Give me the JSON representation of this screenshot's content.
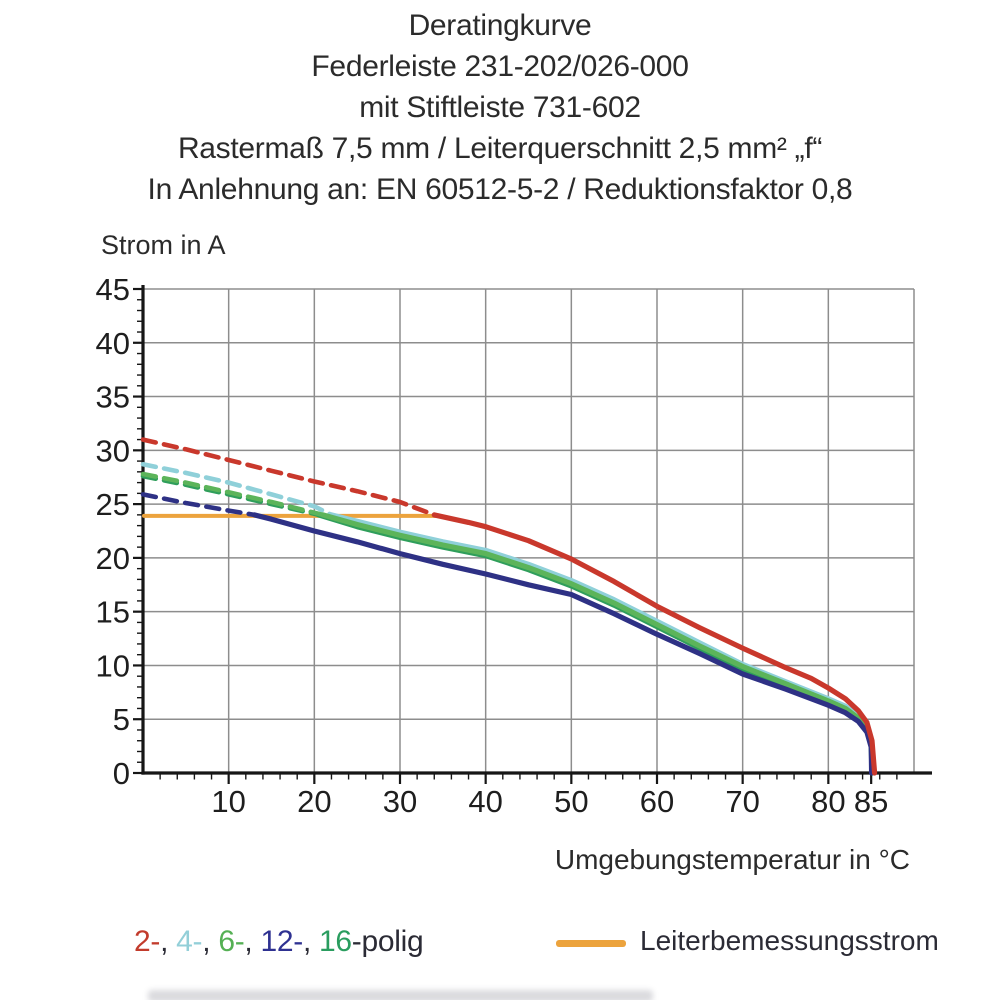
{
  "header": {
    "line1": "Deratingkurve",
    "line2": "Federleiste 231-202/026-000",
    "line3": "mit Stiftleiste 731-602",
    "line4": "Rastermaß 7,5 mm / Leiterquerschnitt 2,5 mm² „f“",
    "line5": "In Anlehnung an: EN 60512-5-2 / Reduktionsfaktor 0,8"
  },
  "chart_data": {
    "type": "line",
    "title": "Deratingkurve Federleiste 231-202/026-000 mit Stiftleiste 731-602",
    "xlabel": "Umgebungstemperatur in °C",
    "ylabel": "Strom in A",
    "xlim": [
      0,
      90
    ],
    "ylim": [
      0,
      45
    ],
    "x_ticks": [
      10,
      20,
      30,
      40,
      50,
      60,
      70,
      80,
      85
    ],
    "x_gridlines": [
      10,
      20,
      30,
      40,
      50,
      60,
      70,
      80,
      90
    ],
    "x_minor_step": 2,
    "y_ticks": [
      0,
      5,
      10,
      15,
      20,
      25,
      30,
      35,
      40,
      45
    ],
    "y_minor_step": 1,
    "grid": true,
    "legend_position": "bottom",
    "grid_color": "#8d8d8d",
    "axis_color": "#161616",
    "reference_line": {
      "name": "Leiterbemessungsstrom",
      "value": 24,
      "x_start": 0,
      "x_end": 34.2,
      "color": "#eca33d"
    },
    "series": [
      {
        "name": "4-polig",
        "color": "#8fd0d9",
        "dashed_until": 22,
        "points": [
          [
            0,
            28.7
          ],
          [
            5,
            27.9
          ],
          [
            10,
            27.0
          ],
          [
            15,
            25.9
          ],
          [
            20,
            24.8
          ],
          [
            22,
            24
          ],
          [
            25,
            23.4
          ],
          [
            30,
            22.4
          ],
          [
            35,
            21.5
          ],
          [
            40,
            20.7
          ],
          [
            45,
            19.4
          ],
          [
            50,
            17.9
          ],
          [
            55,
            16.1
          ],
          [
            60,
            14.1
          ],
          [
            65,
            12.1
          ],
          [
            70,
            10.1
          ],
          [
            75,
            8.5
          ],
          [
            80,
            6.9
          ],
          [
            82,
            6.2
          ],
          [
            83.5,
            5.3
          ],
          [
            84.5,
            4.3
          ],
          [
            85,
            3.0
          ],
          [
            85.2,
            0
          ]
        ]
      },
      {
        "name": "16-polig",
        "color": "#2f9e5b",
        "dashed_until": 20.5,
        "points": [
          [
            0,
            27.6
          ],
          [
            5,
            26.8
          ],
          [
            10,
            25.9
          ],
          [
            15,
            25.0
          ],
          [
            20,
            24.1
          ],
          [
            20.5,
            24
          ],
          [
            25,
            22.9
          ],
          [
            30,
            21.9
          ],
          [
            35,
            21.0
          ],
          [
            40,
            20.2
          ],
          [
            45,
            18.9
          ],
          [
            50,
            17.4
          ],
          [
            55,
            15.6
          ],
          [
            60,
            13.6
          ],
          [
            65,
            11.6
          ],
          [
            70,
            9.7
          ],
          [
            75,
            8.1
          ],
          [
            80,
            6.5
          ],
          [
            82,
            5.8
          ],
          [
            83.5,
            4.9
          ],
          [
            84.5,
            3.9
          ],
          [
            85,
            2.6
          ],
          [
            85.1,
            0
          ]
        ]
      },
      {
        "name": "6-polig",
        "color": "#5cb45a",
        "dashed_until": 21,
        "points": [
          [
            0,
            27.8
          ],
          [
            5,
            27.0
          ],
          [
            10,
            26.1
          ],
          [
            15,
            25.2
          ],
          [
            20,
            24.2
          ],
          [
            21,
            24
          ],
          [
            25,
            23.1
          ],
          [
            30,
            22.1
          ],
          [
            35,
            21.2
          ],
          [
            40,
            20.4
          ],
          [
            45,
            19.1
          ],
          [
            50,
            17.6
          ],
          [
            55,
            15.8
          ],
          [
            60,
            13.8
          ],
          [
            65,
            11.8
          ],
          [
            70,
            9.9
          ],
          [
            75,
            8.3
          ],
          [
            80,
            6.7
          ],
          [
            82,
            6.0
          ],
          [
            83.5,
            5.1
          ],
          [
            84.5,
            4.1
          ],
          [
            85,
            2.8
          ],
          [
            85.15,
            0
          ]
        ]
      },
      {
        "name": "12-polig",
        "color": "#2e3185",
        "dashed_until": 13,
        "points": [
          [
            0,
            25.9
          ],
          [
            5,
            25.1
          ],
          [
            10,
            24.4
          ],
          [
            13,
            24
          ],
          [
            15,
            23.6
          ],
          [
            20,
            22.5
          ],
          [
            25,
            21.5
          ],
          [
            30,
            20.4
          ],
          [
            35,
            19.4
          ],
          [
            40,
            18.5
          ],
          [
            45,
            17.5
          ],
          [
            50,
            16.6
          ],
          [
            55,
            14.8
          ],
          [
            60,
            12.9
          ],
          [
            65,
            11.1
          ],
          [
            70,
            9.2
          ],
          [
            75,
            7.8
          ],
          [
            80,
            6.3
          ],
          [
            82,
            5.6
          ],
          [
            83.5,
            4.8
          ],
          [
            84.5,
            3.8
          ],
          [
            85,
            2.4
          ],
          [
            85.05,
            0
          ]
        ]
      },
      {
        "name": "2-polig",
        "color": "#c9382c",
        "dashed_until": 34,
        "points": [
          [
            0,
            31
          ],
          [
            5,
            30.1
          ],
          [
            10,
            29.1
          ],
          [
            15,
            28.1
          ],
          [
            20,
            27.1
          ],
          [
            25,
            26.2
          ],
          [
            30,
            25.2
          ],
          [
            34,
            24
          ],
          [
            38,
            23.3
          ],
          [
            40,
            22.9
          ],
          [
            45,
            21.6
          ],
          [
            50,
            19.9
          ],
          [
            55,
            17.8
          ],
          [
            60,
            15.5
          ],
          [
            65,
            13.5
          ],
          [
            70,
            11.6
          ],
          [
            75,
            9.8
          ],
          [
            78,
            8.8
          ],
          [
            80,
            7.9
          ],
          [
            82,
            6.9
          ],
          [
            83.5,
            5.8
          ],
          [
            84.5,
            4.7
          ],
          [
            85.1,
            3.0
          ],
          [
            85.4,
            0
          ]
        ]
      }
    ]
  },
  "legend": {
    "poles": [
      {
        "text": "2-",
        "color": "#c23b2c"
      },
      {
        "text": "4-",
        "color": "#93cfd8"
      },
      {
        "text": "6-",
        "color": "#55b054"
      },
      {
        "text": "12-",
        "color": "#2e3191"
      },
      {
        "text": "16",
        "color": "#2a9d5f"
      }
    ],
    "separator": ", ",
    "suffix": "-polig",
    "reference_label": "Leiterbemessungsstrom",
    "reference_color": "#eca33d"
  }
}
